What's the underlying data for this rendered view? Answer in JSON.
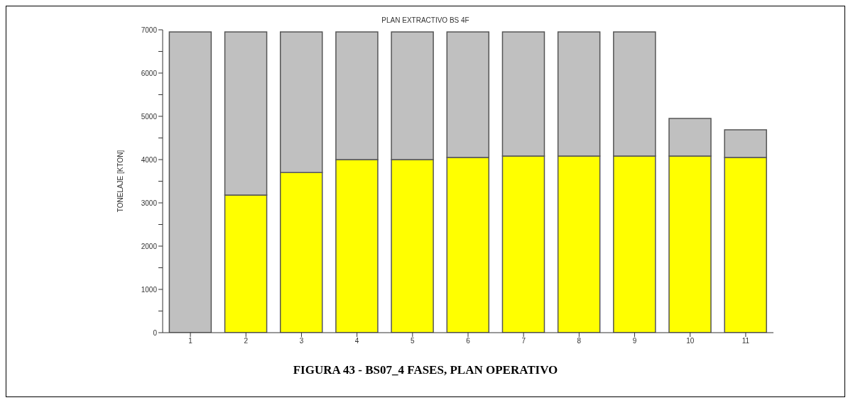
{
  "chart_data": {
    "type": "bar",
    "title": "PLAN EXTRACTIVO BS 4F",
    "ylabel": "TONELAJE [KTON]",
    "categories": [
      "1",
      "2",
      "3",
      "4",
      "5",
      "6",
      "7",
      "8",
      "9",
      "10",
      "11"
    ],
    "stacked": true,
    "series": [
      {
        "color": "#ffff00",
        "values": [
          0,
          3180,
          3700,
          4000,
          4000,
          4050,
          4080,
          4080,
          4080,
          4080,
          4050
        ]
      },
      {
        "color": "#c0c0c0",
        "values": [
          6950,
          3770,
          3250,
          2950,
          2950,
          2900,
          2870,
          2870,
          2870,
          870,
          640
        ]
      }
    ],
    "ylim": [
      0,
      7000
    ],
    "yticks": [
      0,
      {
        "value": 500,
        "label": null
      },
      1000,
      {
        "value": 1500,
        "label": null
      },
      2000,
      {
        "value": 2500,
        "label": null
      },
      3000,
      {
        "value": 3500,
        "label": null
      },
      4000,
      {
        "value": 4500,
        "label": null
      },
      5000,
      {
        "value": 5500,
        "label": null
      },
      6000,
      {
        "value": 6500,
        "label": null
      },
      7000
    ],
    "grid": false,
    "legend": false,
    "annotations": [
      "FIGURA 43 - BS07_4 FASES, PLAN OPERATIVO"
    ]
  }
}
